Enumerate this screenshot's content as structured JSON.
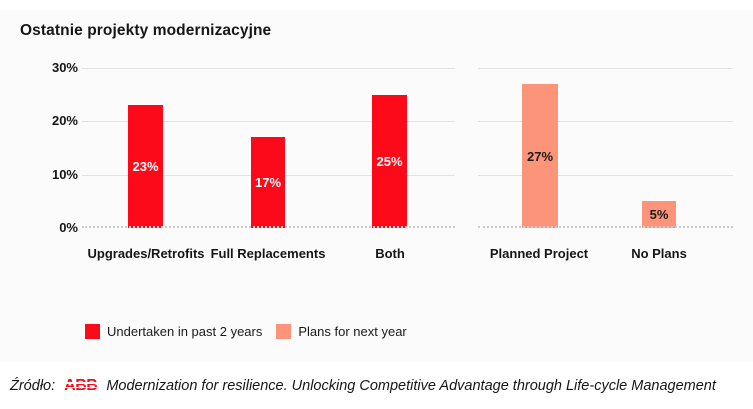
{
  "title": "Ostatnie projekty modernizacyjne",
  "colors": {
    "red": "#fc0a19",
    "salmon": "#fc947a",
    "grid": "#e2e2e2",
    "axis_dotted": "#cccccc",
    "text": "#161616",
    "bar_label_light": "#ffffff",
    "bar_label_dark": "#1c1c1c",
    "background": "#fbfbfb",
    "outer_background": "#ffffff"
  },
  "y_axis": {
    "ticks": [
      "30%",
      "20%",
      "10%",
      "0%"
    ]
  },
  "chart_data": {
    "type": "bar",
    "title": "Ostatnie projekty modernizacyjne",
    "xlabel": "",
    "ylabel": "",
    "ylim": [
      0,
      30
    ],
    "y_tick_values": [
      0,
      10,
      20,
      30
    ],
    "grid": true,
    "legend_position": "bottom",
    "legend": [
      "Undertaken in past 2 years",
      "Plans for next year"
    ],
    "groups": [
      {
        "series": "Undertaken in past 2 years",
        "color": "#fc0a19",
        "categories": [
          "Upgrades/Retrofits",
          "Full Replacements",
          "Both"
        ],
        "values": [
          23,
          17,
          25
        ],
        "labels": [
          "23%",
          "17%",
          "25%"
        ]
      },
      {
        "series": "Plans for next year",
        "color": "#fc947a",
        "categories": [
          "Planned Project",
          "No Plans"
        ],
        "values": [
          27,
          5
        ],
        "labels": [
          "27%",
          "5%"
        ]
      }
    ]
  },
  "source": {
    "prefix": "Źródło:",
    "brand": "ABB",
    "text": "Modernization for resilience. Unlocking Competitive Advantage through Life-cycle Management"
  }
}
